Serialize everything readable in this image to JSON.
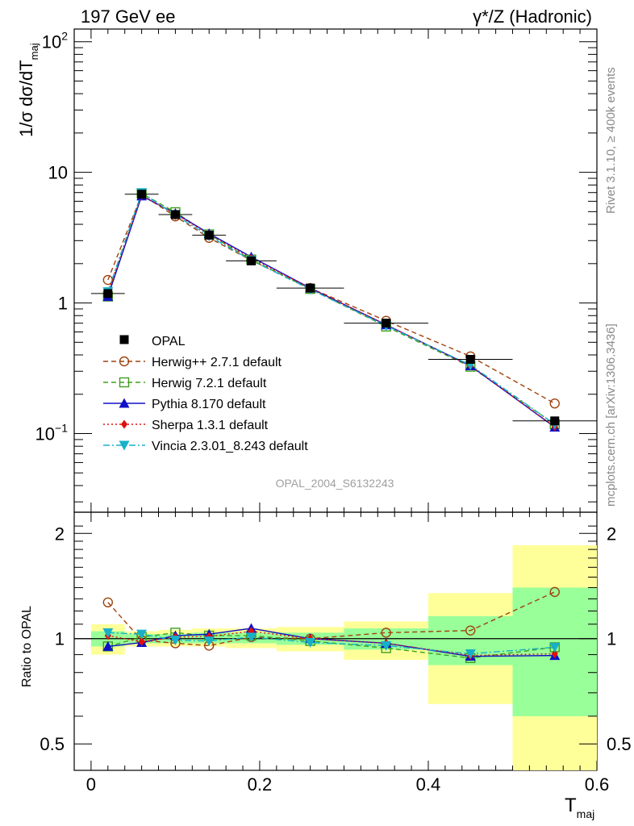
{
  "header": {
    "left_title": "197 GeV ee",
    "right_title": "γ*/Z (Hadronic)",
    "side_label_top": "Rivet 3.1.10, ≥ 400k events",
    "side_label_bottom": "mcplots.cern.ch [arXiv:1306.3436]",
    "watermark": "OPAL_2004_S6132243"
  },
  "chart_data": [
    {
      "type": "line",
      "panel": "main",
      "ylabel_main": "1/σ dσ/dT",
      "ylabel_sub": "maj",
      "yscale": "log",
      "ylim": [
        0.025,
        125
      ],
      "xlim": [
        -0.02,
        0.6
      ],
      "ytick_labels": [
        "10^-1",
        "1",
        "10",
        "10^2"
      ],
      "x": [
        0.02,
        0.06,
        0.1,
        0.14,
        0.19,
        0.26,
        0.35,
        0.45,
        0.55
      ],
      "data": {
        "name": "OPAL",
        "values": [
          1.18,
          6.8,
          4.75,
          3.3,
          2.1,
          1.3,
          0.7,
          0.37,
          0.125
        ],
        "xerr": [
          0.02,
          0.02,
          0.02,
          0.02,
          0.03,
          0.04,
          0.05,
          0.05,
          0.05
        ]
      },
      "series": [
        {
          "name": "Herwig++ 2.7.1 default",
          "color": "#a0420d",
          "dash": "6,4",
          "marker": "circle-open",
          "values": [
            1.5,
            6.75,
            4.6,
            3.15,
            2.12,
            1.3,
            0.73,
            0.39,
            0.17
          ]
        },
        {
          "name": "Herwig 7.2.1 default",
          "color": "#3f9f1f",
          "dash": "6,4",
          "marker": "square-open",
          "values": [
            1.12,
            6.9,
            4.95,
            3.35,
            2.15,
            1.28,
            0.66,
            0.325,
            0.118
          ]
        },
        {
          "name": "Pythia 8.170 default",
          "color": "#1010c8",
          "dash": "",
          "marker": "triangle-up",
          "values": [
            1.12,
            6.6,
            4.85,
            3.4,
            2.25,
            1.3,
            0.68,
            0.33,
            0.112
          ]
        },
        {
          "name": "Sherpa 1.3.1 default",
          "color": "#e01010",
          "dash": "2,3",
          "marker": "diamond",
          "values": [
            1.2,
            6.65,
            4.8,
            3.35,
            2.2,
            1.3,
            0.68,
            0.33,
            0.113
          ]
        },
        {
          "name": "Vincia 2.3.01_8.243 default",
          "color": "#18b0c8",
          "dash": "8,3,2,3",
          "marker": "triangle-down",
          "values": [
            1.22,
            7.0,
            4.7,
            3.25,
            2.12,
            1.27,
            0.67,
            0.335,
            0.118
          ]
        }
      ]
    },
    {
      "type": "line",
      "panel": "ratio",
      "ylabel": "Ratio to OPAL",
      "yscale": "log",
      "ylim": [
        0.42,
        2.3
      ],
      "yticks": [
        0.5,
        1,
        2
      ],
      "ytick_labels": [
        "0.5",
        "1",
        "2"
      ],
      "xlabel_main": "T",
      "xlabel_sub": "maj",
      "xticks": [
        0,
        0.2,
        0.4,
        0.6
      ],
      "xtick_labels": [
        "0",
        "0.2",
        "0.4",
        "0.6"
      ],
      "x": [
        0.02,
        0.06,
        0.1,
        0.14,
        0.19,
        0.26,
        0.35,
        0.45,
        0.55
      ],
      "bands": [
        {
          "xlo": 0.0,
          "xhi": 0.04,
          "yellow": [
            0.9,
            1.1
          ],
          "green": [
            0.95,
            1.05
          ]
        },
        {
          "xlo": 0.04,
          "xhi": 0.08,
          "yellow": [
            0.95,
            1.05
          ],
          "green": [
            0.97,
            1.03
          ]
        },
        {
          "xlo": 0.08,
          "xhi": 0.12,
          "yellow": [
            0.95,
            1.06
          ],
          "green": [
            0.97,
            1.03
          ]
        },
        {
          "xlo": 0.12,
          "xhi": 0.16,
          "yellow": [
            0.95,
            1.07
          ],
          "green": [
            0.97,
            1.04
          ]
        },
        {
          "xlo": 0.16,
          "xhi": 0.22,
          "yellow": [
            0.94,
            1.07
          ],
          "green": [
            0.97,
            1.04
          ]
        },
        {
          "xlo": 0.22,
          "xhi": 0.3,
          "yellow": [
            0.92,
            1.08
          ],
          "green": [
            0.96,
            1.04
          ]
        },
        {
          "xlo": 0.3,
          "xhi": 0.4,
          "yellow": [
            0.87,
            1.12
          ],
          "green": [
            0.93,
            1.07
          ]
        },
        {
          "xlo": 0.4,
          "xhi": 0.5,
          "yellow": [
            0.65,
            1.35
          ],
          "green": [
            0.84,
            1.16
          ]
        },
        {
          "xlo": 0.5,
          "xhi": 0.6,
          "yellow": [
            0.42,
            1.85
          ],
          "green": [
            0.6,
            1.4
          ]
        }
      ],
      "series": [
        {
          "name": "Herwig++ 2.7.1 default",
          "values": [
            1.27,
            0.99,
            0.97,
            0.955,
            1.01,
            1.0,
            1.04,
            1.055,
            1.36
          ]
        },
        {
          "name": "Herwig 7.2.1 default",
          "values": [
            0.95,
            1.01,
            1.04,
            1.02,
            1.02,
            0.985,
            0.94,
            0.88,
            0.945
          ]
        },
        {
          "name": "Pythia 8.170 default",
          "values": [
            0.95,
            0.975,
            1.02,
            1.03,
            1.07,
            1.0,
            0.97,
            0.89,
            0.895
          ]
        },
        {
          "name": "Sherpa 1.3.1 default",
          "values": [
            1.02,
            0.98,
            1.01,
            1.015,
            1.05,
            1.0,
            0.97,
            0.895,
            0.905
          ]
        },
        {
          "name": "Vincia 2.3.01_8.243 default",
          "values": [
            1.04,
            1.03,
            0.99,
            0.985,
            1.01,
            0.975,
            0.955,
            0.905,
            0.945
          ]
        }
      ]
    }
  ]
}
